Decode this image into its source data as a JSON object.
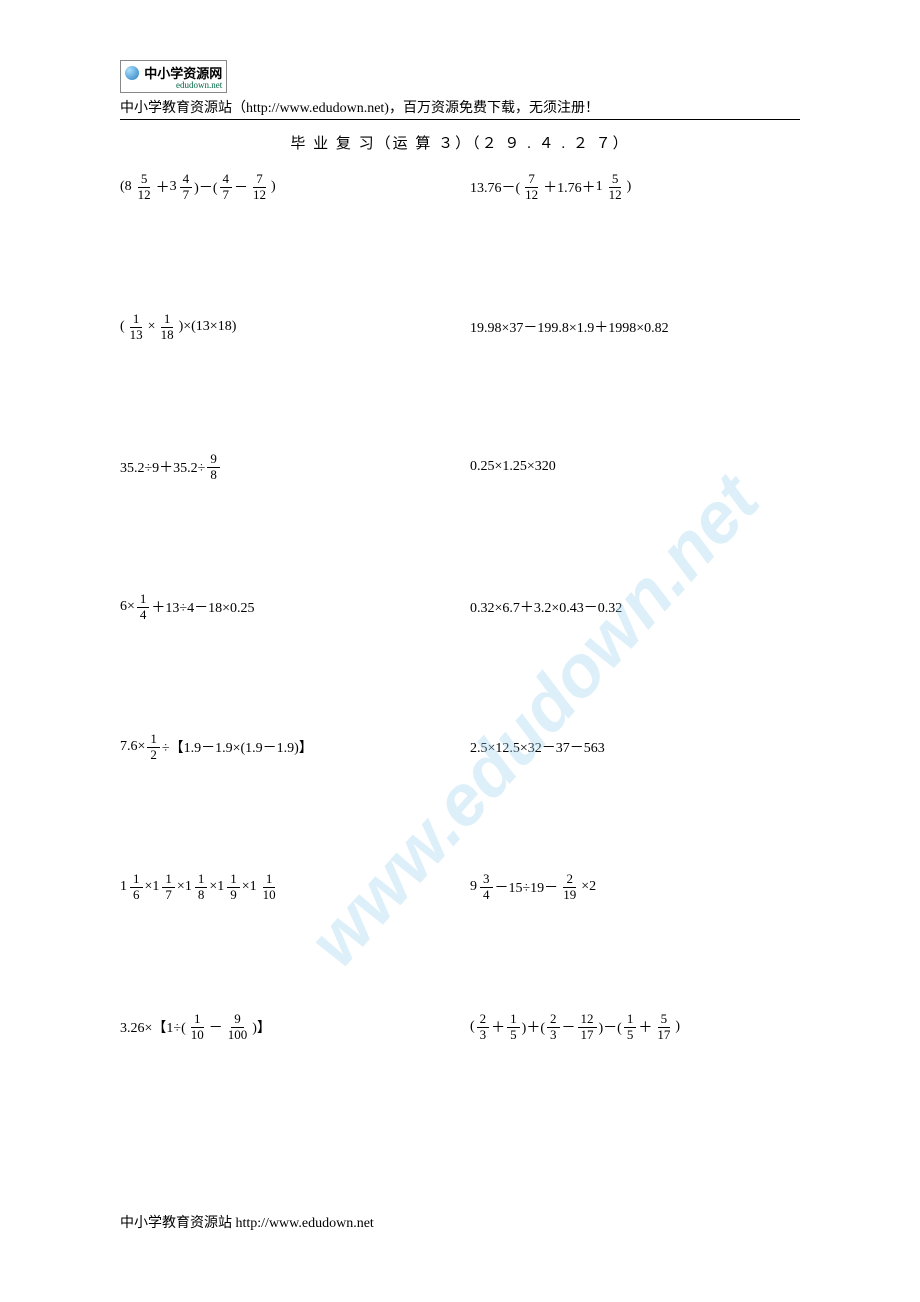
{
  "logo": {
    "text": "中小学资源网",
    "sub": "edudown.net"
  },
  "header": "中小学教育资源站（http://www.edudown.net)，百万资源免费下载，无须注册！",
  "title": "毕 业 复 习（运 算 ３）（２ ９ . ４ . ２ ７）",
  "footer": "中小学教育资源站  http://www.edudown.net",
  "watermark": {
    "text": "www.edudown.net",
    "color": "#9fd4f0"
  },
  "problems": [
    {
      "type": "expr",
      "parts": [
        "(",
        {
          "mixed": {
            "w": "8",
            "n": "5",
            "d": "12"
          }
        },
        "＋",
        {
          "mixed": {
            "w": "3",
            "n": "4",
            "d": "7"
          }
        },
        ")－( ",
        {
          "frac": {
            "n": "4",
            "d": "7"
          }
        },
        "－ ",
        {
          "frac": {
            "n": "7",
            "d": "12"
          }
        },
        ")"
      ]
    },
    {
      "type": "expr",
      "parts": [
        "13.76－(",
        {
          "frac": {
            "n": "7",
            "d": "12"
          }
        },
        "＋1.76＋",
        {
          "mixed": {
            "w": "1",
            "n": "5",
            "d": "12"
          }
        },
        ")"
      ]
    },
    {
      "type": "expr",
      "parts": [
        "(",
        {
          "frac": {
            "n": "1",
            "d": "13"
          }
        },
        "×",
        {
          "frac": {
            "n": "1",
            "d": "18"
          }
        },
        ")×(13×18)"
      ]
    },
    {
      "type": "text",
      "text": "19.98×37－199.8×1.9＋1998×0.82"
    },
    {
      "type": "expr",
      "parts": [
        "35.2÷9＋35.2÷",
        {
          "frac": {
            "n": "9",
            "d": "8"
          }
        }
      ]
    },
    {
      "type": "text",
      "text": "0.25×1.25×320"
    },
    {
      "type": "expr",
      "parts": [
        "6×",
        {
          "frac": {
            "n": "1",
            "d": "4"
          }
        },
        "＋13÷4－18×0.25"
      ]
    },
    {
      "type": "text",
      "text": "0.32×6.7＋3.2×0.43－0.32"
    },
    {
      "type": "expr",
      "parts": [
        "7.6×",
        {
          "frac": {
            "n": "1",
            "d": "2"
          }
        },
        "÷【1.9－1.9×(1.9－1.9)】"
      ]
    },
    {
      "type": "text",
      "text": "2.5×12.5×32－37－563"
    },
    {
      "type": "expr",
      "parts": [
        {
          "mixed": {
            "w": "1",
            "n": "1",
            "d": "6"
          }
        },
        "×",
        {
          "mixed": {
            "w": "1",
            "n": "1",
            "d": "7"
          }
        },
        "×",
        {
          "mixed": {
            "w": "1",
            "n": "1",
            "d": "8"
          }
        },
        "×",
        {
          "mixed": {
            "w": "1",
            "n": "1",
            "d": "9"
          }
        },
        "×",
        {
          "mixed": {
            "w": "1",
            "n": "1",
            "d": "10"
          }
        }
      ]
    },
    {
      "type": "expr",
      "parts": [
        {
          "mixed": {
            "w": "9",
            "n": "3",
            "d": "4"
          }
        },
        "－15÷19－",
        {
          "frac": {
            "n": "2",
            "d": "19"
          }
        },
        "×2"
      ]
    },
    {
      "type": "expr",
      "last": true,
      "parts": [
        "3.26×【1÷(",
        {
          "frac": {
            "n": "1",
            "d": "10"
          }
        },
        "－",
        {
          "frac": {
            "n": "9",
            "d": "100"
          }
        },
        ")】"
      ]
    },
    {
      "type": "expr",
      "last": true,
      "parts": [
        "(",
        {
          "frac": {
            "n": "2",
            "d": "3"
          }
        },
        "＋",
        {
          "frac": {
            "n": "1",
            "d": "5"
          }
        },
        ")＋(",
        {
          "frac": {
            "n": "2",
            "d": "3"
          }
        },
        "－",
        {
          "frac": {
            "n": "12",
            "d": "17"
          }
        },
        ")－(",
        {
          "frac": {
            "n": "1",
            "d": "5"
          }
        },
        "＋",
        {
          "frac": {
            "n": "5",
            "d": "17"
          }
        },
        ")"
      ]
    }
  ]
}
